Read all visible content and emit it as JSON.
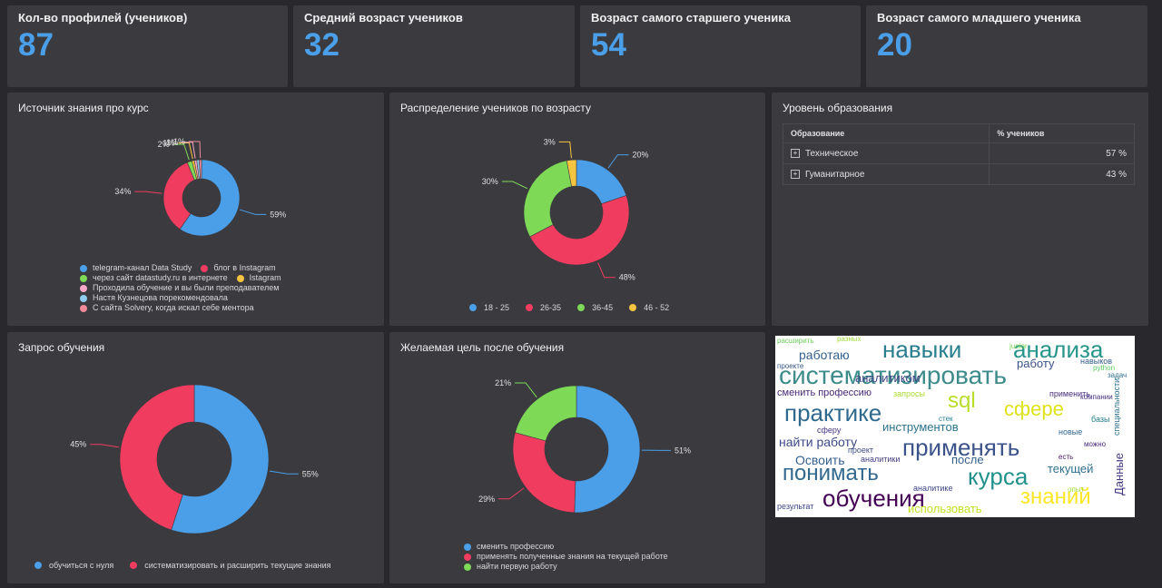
{
  "kpis": [
    {
      "title": "Кол-во профилей (учеников)",
      "value": "87"
    },
    {
      "title": "Средний возраст учеников",
      "value": "32"
    },
    {
      "title": "Возраст самого старшего ученика",
      "value": "54"
    },
    {
      "title": "Возраст самого младшего ученика",
      "value": "20"
    }
  ],
  "source_panel": {
    "title": "Источник знания про курс"
  },
  "age_panel": {
    "title": "Распределение учеников по возрасту"
  },
  "edu_panel": {
    "title": "Уровень образования",
    "columns": [
      "Образование",
      "% учеников"
    ],
    "rows": [
      {
        "label": "Техническое",
        "value": "57 %"
      },
      {
        "label": "Гуманитарное",
        "value": "43 %"
      }
    ]
  },
  "request_panel": {
    "title": "Запрос обучения"
  },
  "goal_panel": {
    "title": "Желаемая цель после обучения"
  },
  "colors": {
    "blue": "#4a9fe8",
    "red": "#f03c5f",
    "green": "#7ed957",
    "yellow": "#f5c542",
    "pink": "#f7a8c9",
    "lightblue": "#8ecdf0",
    "rose": "#f08a9a"
  },
  "chart_data": [
    {
      "type": "pie",
      "id": "source",
      "title": "Источник знания про курс",
      "labels": [
        "telegram-канал Data Study",
        "блог в Instagram",
        "через сайт datastudy.ru в интернете",
        "Istagram",
        "Проходила обучение и вы были преподавателем",
        "Настя Кузнецова порекомендовала",
        "С сайта Solvery, когда искал себе ментора"
      ],
      "values": [
        59,
        34,
        2,
        1,
        1,
        1,
        1
      ],
      "value_labels": [
        "59%",
        "34%",
        "2%",
        "1%",
        "1%",
        "",
        "1%"
      ],
      "colors": [
        "#4a9fe8",
        "#f03c5f",
        "#7ed957",
        "#f5c542",
        "#f7a8c9",
        "#8ecdf0",
        "#f08a9a"
      ],
      "legend": "bottom"
    },
    {
      "type": "pie",
      "id": "age",
      "title": "Распределение учеников по возрасту",
      "labels": [
        "18 - 25",
        "26-35",
        "36-45",
        "46 - 52"
      ],
      "values": [
        20,
        48,
        30,
        3
      ],
      "value_labels": [
        "20%",
        "48%",
        "30%",
        "3%"
      ],
      "colors": [
        "#4a9fe8",
        "#f03c5f",
        "#7ed957",
        "#f5c542"
      ],
      "legend": "bottom"
    },
    {
      "type": "pie",
      "id": "request",
      "title": "Запрос обучения",
      "labels": [
        "обучиться с нуля",
        "систематизировать и расширить текущие знания"
      ],
      "values": [
        55,
        45
      ],
      "value_labels": [
        "55%",
        "45%"
      ],
      "colors": [
        "#4a9fe8",
        "#f03c5f"
      ],
      "legend": "bottom"
    },
    {
      "type": "pie",
      "id": "goal",
      "title": "Желаемая цель после обучения",
      "labels": [
        "сменить профессию",
        "применять полученные знания на текущей работе",
        "найти первую работу"
      ],
      "values": [
        51,
        29,
        21
      ],
      "value_labels": [
        "51%",
        "29%",
        "21%"
      ],
      "colors": [
        "#4a9fe8",
        "#f03c5f",
        "#7ed957"
      ],
      "legend": "bottom"
    }
  ],
  "wordcloud": {
    "words": [
      {
        "text": "систематизировать",
        "color": "#3d8b8a"
      },
      {
        "text": "навыки",
        "color": "#2a7f8e"
      },
      {
        "text": "анализа",
        "color": "#27958a"
      },
      {
        "text": "практике",
        "color": "#2e6a8e"
      },
      {
        "text": "sql",
        "color": "#b8de29"
      },
      {
        "text": "сфере",
        "color": "#dde318"
      },
      {
        "text": "применять",
        "color": "#3b528b"
      },
      {
        "text": "понимать",
        "color": "#31688e"
      },
      {
        "text": "курса",
        "color": "#21918c"
      },
      {
        "text": "обучения",
        "color": "#440154"
      },
      {
        "text": "знаний",
        "color": "#fde725"
      },
      {
        "text": "работаю",
        "color": "#35608d"
      },
      {
        "text": "работу",
        "color": "#3b528b"
      },
      {
        "text": "аналитиком",
        "color": "#414487"
      },
      {
        "text": "сменить профессию",
        "color": "#482878"
      },
      {
        "text": "инструментов",
        "color": "#2c728e"
      },
      {
        "text": "найти работу",
        "color": "#3e4a89"
      },
      {
        "text": "Освоить",
        "color": "#355f8d"
      },
      {
        "text": "после",
        "color": "#34618d"
      },
      {
        "text": "текущей",
        "color": "#2d708e"
      },
      {
        "text": "использовать",
        "color": "#c2df23"
      },
      {
        "text": "Данные",
        "color": "#443983"
      },
      {
        "text": "junior",
        "color": "#7ad151"
      },
      {
        "text": "python",
        "color": "#5ec962"
      },
      {
        "text": "компании",
        "color": "#46327e"
      },
      {
        "text": "расширить",
        "color": "#6ccd5a"
      },
      {
        "text": "разных",
        "color": "#9fda3a"
      },
      {
        "text": "стек",
        "color": "#26828e"
      },
      {
        "text": "результат",
        "color": "#3f4788"
      },
      {
        "text": "аналитике",
        "color": "#404688"
      },
      {
        "text": "запросы",
        "color": "#addc30"
      },
      {
        "text": "применить",
        "color": "#472f7d"
      },
      {
        "text": "навыков",
        "color": "#365c8d"
      },
      {
        "text": "задач",
        "color": "#2e6f8e"
      },
      {
        "text": "опыт",
        "color": "#a2da37"
      },
      {
        "text": "проекте",
        "color": "#38598c"
      },
      {
        "text": "аналитики",
        "color": "#423f85"
      },
      {
        "text": "новые",
        "color": "#31678e"
      },
      {
        "text": "проект",
        "color": "#3d4e8a"
      },
      {
        "text": "сферу",
        "color": "#453581"
      },
      {
        "text": "базы",
        "color": "#277f8e"
      },
      {
        "text": "можно",
        "color": "#472a7a"
      },
      {
        "text": "есть",
        "color": "#481668"
      },
      {
        "text": "специальности",
        "color": "#2c738e"
      }
    ]
  }
}
